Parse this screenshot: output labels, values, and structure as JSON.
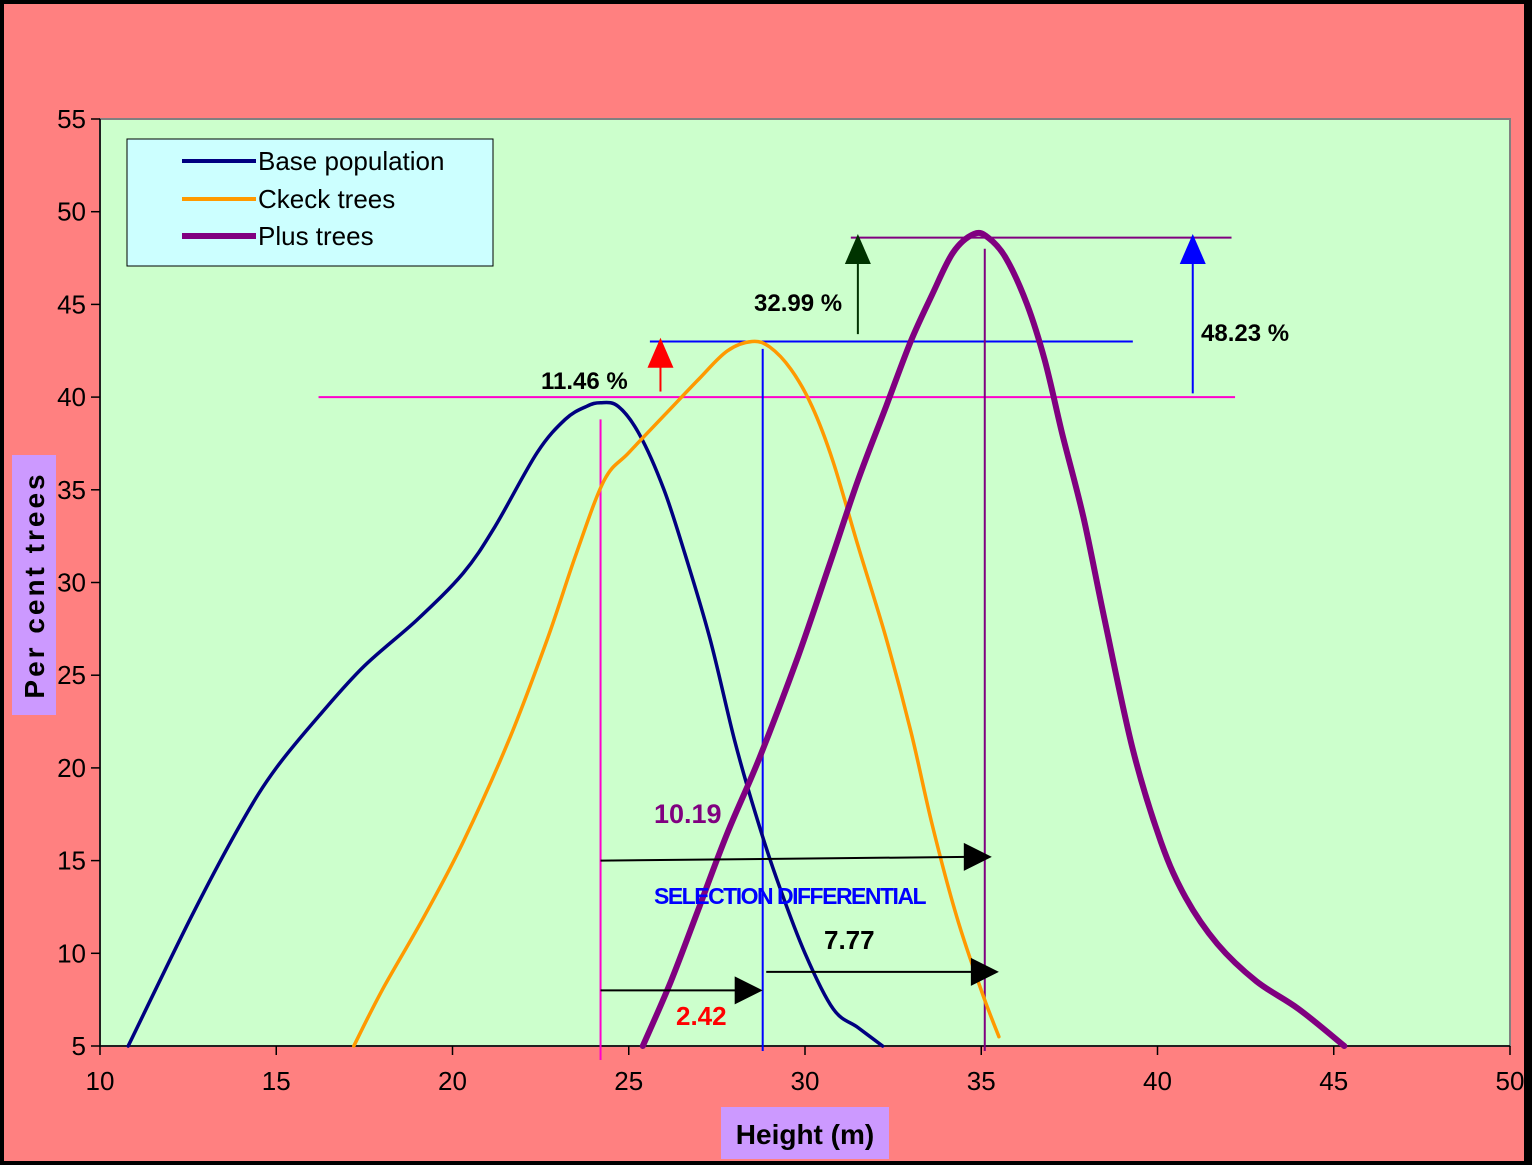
{
  "chart_data": {
    "type": "line",
    "title": "",
    "xlabel": "Height (m)",
    "ylabel": "Per cent trees",
    "xlim": [
      10,
      50
    ],
    "ylim": [
      5,
      55
    ],
    "x_ticks": [
      10,
      15,
      20,
      25,
      30,
      35,
      40,
      45,
      50
    ],
    "y_ticks": [
      5,
      10,
      15,
      20,
      25,
      30,
      35,
      40,
      45,
      50,
      55
    ],
    "grid": false,
    "legend_position": "top-left",
    "background_color": "#CCFFCC",
    "outer_color": "#FF8080",
    "series": [
      {
        "name": "Base population",
        "color": "#000080",
        "points": [
          [
            10.8,
            5
          ],
          [
            12.6,
            12
          ],
          [
            14,
            17
          ],
          [
            15,
            20
          ],
          [
            16.3,
            23
          ],
          [
            17.5,
            25.5
          ],
          [
            19,
            28
          ],
          [
            20.3,
            30.5
          ],
          [
            21.2,
            33
          ],
          [
            22.4,
            37
          ],
          [
            23.2,
            38.8
          ],
          [
            23.8,
            39.5
          ],
          [
            24.2,
            39.7
          ],
          [
            24.7,
            39.5
          ],
          [
            25.3,
            38
          ],
          [
            26,
            35
          ],
          [
            26.6,
            31.5
          ],
          [
            27.3,
            27
          ],
          [
            28,
            21.5
          ],
          [
            28.6,
            17.5
          ],
          [
            29.2,
            14
          ],
          [
            30,
            10
          ],
          [
            30.8,
            7
          ],
          [
            31.5,
            6
          ],
          [
            32.2,
            5
          ]
        ]
      },
      {
        "name": "Ckeck trees",
        "color": "#FF9900",
        "points": [
          [
            17.2,
            5
          ],
          [
            18,
            8
          ],
          [
            19.2,
            12
          ],
          [
            20.3,
            16
          ],
          [
            21.6,
            21.5
          ],
          [
            22.7,
            27
          ],
          [
            23.5,
            31.5
          ],
          [
            24.3,
            35.5
          ],
          [
            25,
            37
          ],
          [
            26,
            39
          ],
          [
            27,
            41
          ],
          [
            27.8,
            42.5
          ],
          [
            28.5,
            43
          ],
          [
            29,
            42.7
          ],
          [
            29.6,
            41.5
          ],
          [
            30.2,
            39.5
          ],
          [
            30.8,
            36.5
          ],
          [
            31.5,
            32
          ],
          [
            32.3,
            27
          ],
          [
            33,
            22
          ],
          [
            33.6,
            17
          ],
          [
            34.3,
            12
          ],
          [
            35,
            8
          ],
          [
            35.5,
            5.5
          ]
        ]
      },
      {
        "name": "Plus trees",
        "color": "#800080",
        "points": [
          [
            25.4,
            5
          ],
          [
            26.2,
            8.5
          ],
          [
            27,
            12.5
          ],
          [
            27.8,
            16.5
          ],
          [
            28.7,
            20.5
          ],
          [
            29.8,
            26
          ],
          [
            30.7,
            31
          ],
          [
            31.5,
            35.5
          ],
          [
            32.3,
            39.5
          ],
          [
            33,
            43
          ],
          [
            33.6,
            45.5
          ],
          [
            34.2,
            47.8
          ],
          [
            34.8,
            48.8
          ],
          [
            35.2,
            48.6
          ],
          [
            35.7,
            47.5
          ],
          [
            36.3,
            45
          ],
          [
            36.8,
            42
          ],
          [
            37.3,
            38
          ],
          [
            37.9,
            33.5
          ],
          [
            38.5,
            28
          ],
          [
            39.3,
            21
          ],
          [
            40.1,
            16
          ],
          [
            40.8,
            13
          ],
          [
            41.7,
            10.5
          ],
          [
            42.8,
            8.5
          ],
          [
            44,
            7
          ],
          [
            45.3,
            5
          ]
        ]
      }
    ],
    "annotations": {
      "pct_11": "11.46 %",
      "pct_33": "32.99 %",
      "pct_48": "48.23 %",
      "diff_main": "10.19",
      "diff_label": "SELECTION DIFFERENTIAL",
      "diff_small": "2.42",
      "diff_gain": "7.77"
    },
    "reference_lines": {
      "h_base_peak": 40,
      "h_check_peak": 43,
      "h_plus_peak": 48.6,
      "v_base_mean": 24.2,
      "v_check_mean": 28.8,
      "v_plus_mean": 35.1
    }
  }
}
